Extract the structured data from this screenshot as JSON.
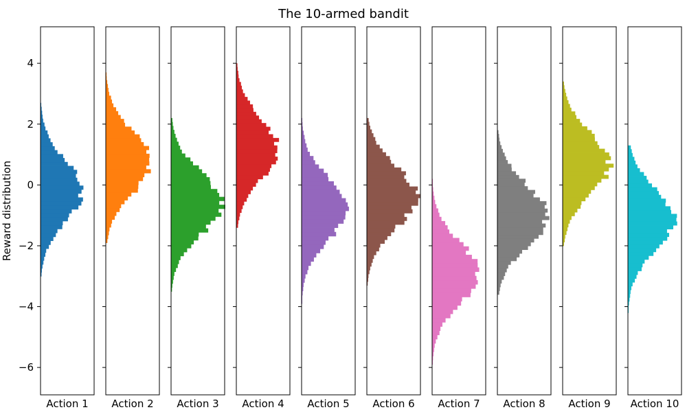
{
  "chart_data": {
    "type": "histogram",
    "title": "The 10-armed bandit",
    "xlabel": "",
    "ylabel": "Reward distribution",
    "ylim": [
      -6.9,
      5.2
    ],
    "yticks": [
      -6,
      -4,
      -2,
      0,
      2,
      4
    ],
    "ytick_labels": [
      "−6",
      "−4",
      "−2",
      "0",
      "2",
      "4"
    ],
    "grid": false,
    "legend": "none",
    "orientation": "horizontal",
    "series": [
      {
        "name": "Action 1",
        "label": "Action 1",
        "color": "#1f77b4",
        "mean": -0.2,
        "min": -3.0,
        "max": 2.7,
        "peak": 0.77
      },
      {
        "name": "Action 2",
        "label": "Action 2",
        "color": "#ff7f0e",
        "mean": 0.75,
        "min": -1.9,
        "max": 3.7,
        "peak": 0.85
      },
      {
        "name": "Action 3",
        "label": "Action 3",
        "color": "#2ca02c",
        "mean": -0.6,
        "min": -3.5,
        "max": 2.2,
        "peak": 0.95
      },
      {
        "name": "Action 4",
        "label": "Action 4",
        "color": "#d62728",
        "mean": 1.2,
        "min": -1.4,
        "max": 4.0,
        "peak": 0.77
      },
      {
        "name": "Action 5",
        "label": "Action 5",
        "color": "#9467bd",
        "mean": -0.8,
        "min": -3.9,
        "max": 2.2,
        "peak": 0.85
      },
      {
        "name": "Action 6",
        "label": "Action 6",
        "color": "#8c564b",
        "mean": -0.4,
        "min": -3.3,
        "max": 2.2,
        "peak": 0.92
      },
      {
        "name": "Action 7",
        "label": "Action 7",
        "color": "#e377c2",
        "mean": -2.9,
        "min": -5.9,
        "max": 0.2,
        "peak": 0.87
      },
      {
        "name": "Action 8",
        "label": "Action 8",
        "color": "#7f7f7f",
        "mean": -1.0,
        "min": -3.6,
        "max": 1.8,
        "peak": 0.92
      },
      {
        "name": "Action 9",
        "label": "Action 9",
        "color": "#bcbd22",
        "mean": 0.7,
        "min": -2.0,
        "max": 3.4,
        "peak": 0.88
      },
      {
        "name": "Action 10",
        "label": "Action 10",
        "color": "#17becf",
        "mean": -1.15,
        "min": -4.2,
        "max": 1.3,
        "peak": 0.86
      }
    ]
  }
}
